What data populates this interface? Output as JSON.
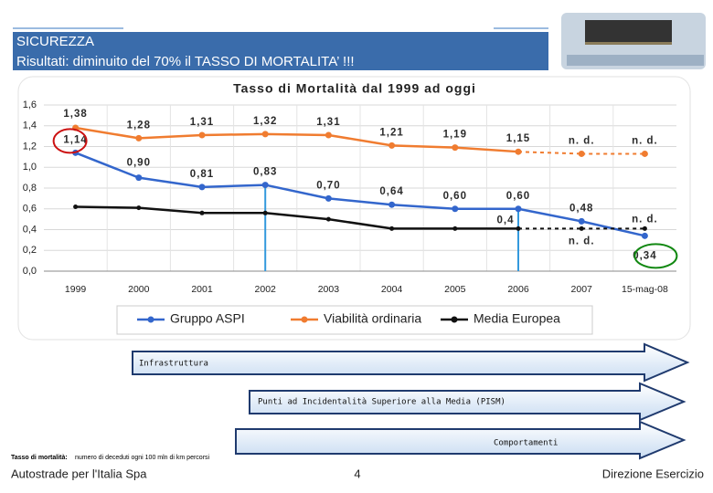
{
  "header": {
    "title": "SICUREZZA",
    "subtitle": "Risultati: diminuito del 70% il TASSO DI MORTALITA’ !!!"
  },
  "chart_data": {
    "type": "line",
    "title": "Tasso di Mortalità dal 1999 ad oggi",
    "categories": [
      "1999",
      "2000",
      "2001",
      "2002",
      "2003",
      "2004",
      "2005",
      "2006",
      "2007",
      "15-mag-08"
    ],
    "series": [
      {
        "name": "Gruppo ASPI",
        "color": "#3366cc",
        "values": [
          1.14,
          0.9,
          0.81,
          0.83,
          0.7,
          0.64,
          0.6,
          0.6,
          0.48,
          0.34
        ],
        "value_labels": [
          "1,14",
          "0,90",
          "0,81",
          "0,83",
          "0,70",
          "0,64",
          "0,60",
          "0,60",
          "0,48",
          "0,34"
        ]
      },
      {
        "name": "Viabilità ordinaria",
        "color": "#f07c30",
        "values": [
          1.38,
          1.28,
          1.31,
          1.32,
          1.31,
          1.21,
          1.19,
          1.15,
          1.13,
          1.13
        ],
        "value_labels": [
          "1,38",
          "1,28",
          "1,31",
          "1,32",
          "1,31",
          "1,21",
          "1,19",
          "1,15",
          "n. d.",
          "n. d."
        ]
      },
      {
        "name": "Media Europea",
        "color": "#111111",
        "values": [
          0.62,
          0.61,
          0.56,
          0.56,
          0.5,
          0.41,
          0.41,
          0.41,
          0.41,
          0.41
        ],
        "value_labels": [
          null,
          null,
          null,
          null,
          null,
          null,
          null,
          "0,4",
          "n. d.",
          "n. d."
        ]
      }
    ],
    "ylim": [
      0,
      1.6
    ],
    "yticks": [
      {
        "value": 0,
        "label": "0,0"
      },
      {
        "value": 0.2,
        "label": "0,2"
      },
      {
        "value": 0.4,
        "label": "0,4"
      },
      {
        "value": 0.6,
        "label": "0,6"
      },
      {
        "value": 0.8,
        "label": "0,8"
      },
      {
        "value": 1.0,
        "label": "1,0"
      },
      {
        "value": 1.2,
        "label": "1,2"
      },
      {
        "value": 1.4,
        "label": "1,4"
      },
      {
        "value": 1.6,
        "label": "1,6"
      }
    ],
    "grid": true,
    "legend": "bottom"
  },
  "arrows": [
    "Infrastruttura",
    "Punti ad Incidentalità Superiore alla Media (PISM)",
    "Comportamenti"
  ],
  "footnote": {
    "term": "Tasso di mortalità:",
    "text": "numero di deceduti ogni 100 mln di km percorsi"
  },
  "footer": {
    "left": "Autostrade per l'Italia Spa",
    "page": "4",
    "right": "Direzione Esercizio"
  }
}
